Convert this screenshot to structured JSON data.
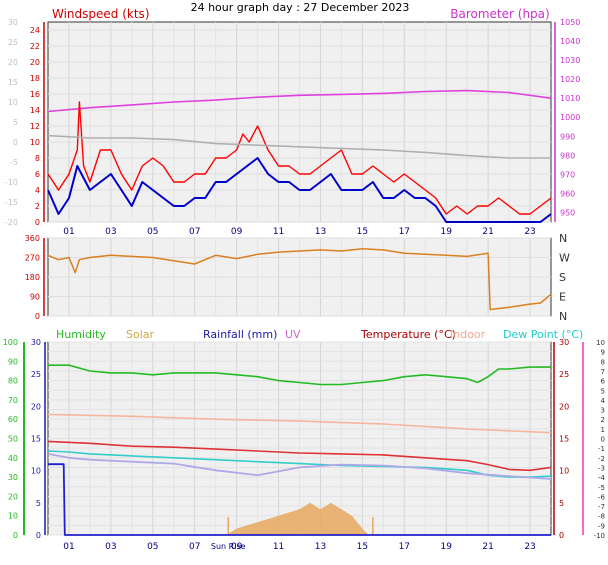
{
  "title": "24 hour graph day : 27 December 2023",
  "chart_data": [
    {
      "type": "line",
      "title": "24 hour graph day : 27 December 2023",
      "x_tick_labels": [
        "01",
        "03",
        "05",
        "07",
        "09",
        "11",
        "13",
        "15",
        "17",
        "19",
        "21",
        "23"
      ],
      "left_label": "Windspeed (kts)",
      "right_label": "Barometer (hpa)",
      "left_ticks": [
        "24",
        "22",
        "20",
        "18",
        "16",
        "14",
        "12",
        "10",
        "8",
        "6",
        "4",
        "2",
        "0"
      ],
      "faint_left_ticks": [
        "30",
        "25",
        "20",
        "15",
        "10",
        "5",
        "0",
        "-5",
        "-10",
        "-15",
        "-20"
      ],
      "right_ticks": [
        "1050",
        "1040",
        "1030",
        "1020",
        "1010",
        "1000",
        "990",
        "980",
        "970",
        "960",
        "950"
      ],
      "ylim_left": [
        0,
        25
      ],
      "ylim_right": [
        945,
        1050
      ],
      "colors": {
        "gust": "#ff0000",
        "avg": "#0000cc",
        "baro": "#e040e0",
        "grey": "#b0b0b0",
        "left": "#cc0000",
        "right": "#cc33cc"
      },
      "series": [
        {
          "key": "baro",
          "hours": [
            0,
            2,
            4,
            6,
            8,
            10,
            12,
            14,
            16,
            18,
            20,
            22,
            24
          ],
          "values": [
            1003,
            1005,
            1006.5,
            1008,
            1009,
            1010.5,
            1011.5,
            1012,
            1012.5,
            1013.5,
            1014,
            1013,
            1010
          ]
        },
        {
          "key": "gust",
          "hours": [
            0,
            0.5,
            1,
            1.4,
            1.5,
            1.7,
            2,
            2.5,
            3,
            3.5,
            4,
            4.5,
            5,
            5.5,
            6,
            6.5,
            7,
            7.5,
            8,
            8.5,
            9,
            9.3,
            9.6,
            10,
            10.5,
            11,
            11.5,
            12,
            12.5,
            13,
            13.5,
            14,
            14.5,
            15,
            15.5,
            16,
            16.5,
            17,
            17.5,
            18,
            18.5,
            19,
            19.5,
            20,
            20.5,
            21,
            21.5,
            22,
            22.5,
            23,
            23.5,
            24
          ],
          "values": [
            6,
            4,
            6,
            9,
            15,
            7,
            5,
            9,
            9,
            6,
            4,
            7,
            8,
            7,
            5,
            5,
            6,
            6,
            8,
            8,
            9,
            11,
            10,
            12,
            9,
            7,
            7,
            6,
            6,
            7,
            8,
            9,
            6,
            6,
            7,
            6,
            5,
            6,
            5,
            4,
            3,
            1,
            2,
            1,
            2,
            2,
            3,
            2,
            1,
            1,
            2,
            3
          ]
        },
        {
          "key": "avg",
          "hours": [
            0,
            0.5,
            1,
            1.4,
            2,
            2.5,
            3,
            3.5,
            4,
            4.5,
            5,
            5.5,
            6,
            6.5,
            7,
            7.5,
            8,
            8.5,
            9,
            9.5,
            10,
            10.5,
            11,
            11.5,
            12,
            12.5,
            13,
            13.5,
            14,
            14.5,
            15,
            15.5,
            16,
            16.5,
            17,
            17.5,
            18,
            18.5,
            19,
            19.5,
            20,
            20.5,
            21,
            21.5,
            22,
            22.5,
            23,
            23.5,
            24
          ],
          "values": [
            4,
            1,
            3,
            7,
            4,
            5,
            6,
            4,
            2,
            5,
            4,
            3,
            2,
            2,
            3,
            3,
            5,
            5,
            6,
            7,
            8,
            6,
            5,
            5,
            4,
            4,
            5,
            6,
            4,
            4,
            4,
            5,
            3,
            3,
            4,
            3,
            3,
            2,
            0,
            0,
            0,
            0,
            0,
            0,
            0,
            0,
            0,
            0,
            1
          ]
        },
        {
          "key": "grey",
          "hours": [
            0,
            2,
            4,
            6,
            8,
            10,
            12,
            14,
            16,
            18,
            20,
            22,
            24
          ],
          "values": [
            10.8,
            10.5,
            10.5,
            10.3,
            9.8,
            9.6,
            9.4,
            9.2,
            9.0,
            8.7,
            8.3,
            8.0,
            8.0
          ]
        }
      ]
    },
    {
      "type": "line",
      "title": "",
      "x_tick_labels": [
        "01",
        "03",
        "05",
        "07",
        "09",
        "11",
        "13",
        "15",
        "17",
        "19",
        "21",
        "23"
      ],
      "left_ticks": [
        "360",
        "270",
        "180",
        "90",
        "0"
      ],
      "right_ticks": [
        "N",
        "W",
        "S",
        "E",
        "N"
      ],
      "ylim": [
        0,
        360
      ],
      "colors": {
        "dir": "#d98020",
        "tick": "#cc0000",
        "right": "#333333"
      },
      "series": [
        {
          "key": "wind_direction",
          "hours": [
            0,
            0.5,
            1,
            1.3,
            1.5,
            2,
            3,
            4,
            5,
            6,
            7,
            8,
            9,
            10,
            11,
            12,
            13,
            14,
            15,
            16,
            17,
            18,
            19,
            20,
            21,
            21.1,
            22,
            23,
            23.5,
            24
          ],
          "values": [
            280,
            260,
            270,
            200,
            260,
            270,
            280,
            275,
            270,
            255,
            240,
            280,
            265,
            285,
            295,
            300,
            305,
            300,
            310,
            305,
            290,
            285,
            280,
            275,
            290,
            30,
            40,
            55,
            60,
            100
          ]
        }
      ]
    },
    {
      "type": "line",
      "title": "",
      "x_tick_labels": [
        "01",
        "03",
        "05",
        "07",
        "09",
        "11",
        "13",
        "15",
        "17",
        "19",
        "21",
        "23"
      ],
      "extra_label": "Sun Rise",
      "headings": [
        {
          "text": "Humidity",
          "color": "#22bb22"
        },
        {
          "text": "Solar",
          "color": "#ccaa44"
        },
        {
          "text": "Rainfall (mm)",
          "color": "#1a1aaa"
        },
        {
          "text": "UV",
          "color": "#cc66cc"
        },
        {
          "text": "Temperature (°C)",
          "color": "#aa0000"
        },
        {
          "text": "Indoor",
          "color": "#f0a896"
        },
        {
          "text": "Dew Point (°C)",
          "color": "#22cccc"
        }
      ],
      "humidity_ticks": [
        "100",
        "90",
        "80",
        "70",
        "60",
        "50",
        "40",
        "30",
        "20",
        "10",
        "0"
      ],
      "rain_ticks": [
        "30",
        "25",
        "20",
        "15",
        "10",
        "5",
        "0"
      ],
      "temp_ticks_right": [
        "30",
        "25",
        "20",
        "15",
        "10",
        "5",
        "0"
      ],
      "temp_ticks_far": [
        "10",
        "9",
        "8",
        "7",
        "6",
        "5",
        "4",
        "3",
        "2",
        "1",
        "0",
        "-1",
        "-2",
        "-3",
        "-4",
        "-5",
        "-6",
        "-7",
        "-8",
        "-9",
        "-10"
      ],
      "temp_ylim": [
        -10,
        10
      ],
      "humidity_ylim": [
        0,
        100
      ],
      "colors": {
        "humidity": "#22bb22",
        "temperature": "#dd3333",
        "indoor": "#f5b5a0",
        "dewpoint": "#33cccc",
        "lilac": "#b0a8e8",
        "rain": "#2020cc",
        "solar": "#e8a860"
      },
      "series": [
        {
          "key": "humidity",
          "hours": [
            0,
            1,
            2,
            3,
            4,
            5,
            6,
            7,
            8,
            9,
            10,
            11,
            12,
            13,
            14,
            15,
            16,
            17,
            18,
            19,
            20,
            20.5,
            21,
            21.5,
            22,
            23,
            24
          ],
          "values": [
            88,
            88,
            85,
            84,
            84,
            83,
            84,
            84,
            84,
            83,
            82,
            80,
            79,
            78,
            78,
            79,
            80,
            82,
            83,
            82,
            81,
            79,
            82,
            86,
            86,
            87,
            87
          ]
        },
        {
          "key": "temperature",
          "hours": [
            0,
            2,
            4,
            6,
            8,
            10,
            12,
            14,
            16,
            18,
            20,
            21,
            22,
            23,
            24
          ],
          "values": [
            -0.3,
            -0.5,
            -0.8,
            -0.9,
            -1.1,
            -1.3,
            -1.5,
            -1.6,
            -1.7,
            -2.0,
            -2.3,
            -2.7,
            -3.2,
            -3.3,
            -3.0
          ]
        },
        {
          "key": "indoor",
          "hours": [
            0,
            4,
            8,
            12,
            16,
            20,
            24
          ],
          "values": [
            2.5,
            2.3,
            2.0,
            1.8,
            1.5,
            1.0,
            0.6
          ]
        },
        {
          "key": "dewpoint",
          "hours": [
            0,
            1,
            2,
            4,
            6,
            8,
            10,
            12,
            14,
            16,
            18,
            20,
            21,
            22,
            23,
            24
          ],
          "values": [
            -1.3,
            -1.4,
            -1.6,
            -1.8,
            -2.0,
            -2.2,
            -2.4,
            -2.6,
            -2.8,
            -2.9,
            -3.0,
            -3.3,
            -3.8,
            -4.0,
            -4.0,
            -3.9
          ]
        },
        {
          "key": "lilac",
          "hours": [
            0,
            1,
            2,
            4,
            6,
            8,
            10,
            12,
            14,
            16,
            18,
            20,
            24
          ],
          "values": [
            -1.6,
            -2.0,
            -2.2,
            -2.4,
            -2.6,
            -3.3,
            -3.8,
            -3.0,
            -2.7,
            -2.8,
            -3.1,
            -3.6,
            -4.2
          ]
        },
        {
          "key": "rain",
          "hours": [
            0,
            0.75,
            0.8,
            24
          ],
          "values": [
            11,
            11,
            0,
            0
          ]
        },
        {
          "key": "solar",
          "hours": [
            8.5,
            9,
            10,
            11,
            12,
            12.5,
            13,
            13.5,
            14,
            14.5,
            15,
            15.3
          ],
          "values": [
            0,
            1,
            2,
            3,
            4,
            5,
            4,
            5,
            4,
            3,
            1,
            0
          ]
        }
      ]
    }
  ]
}
